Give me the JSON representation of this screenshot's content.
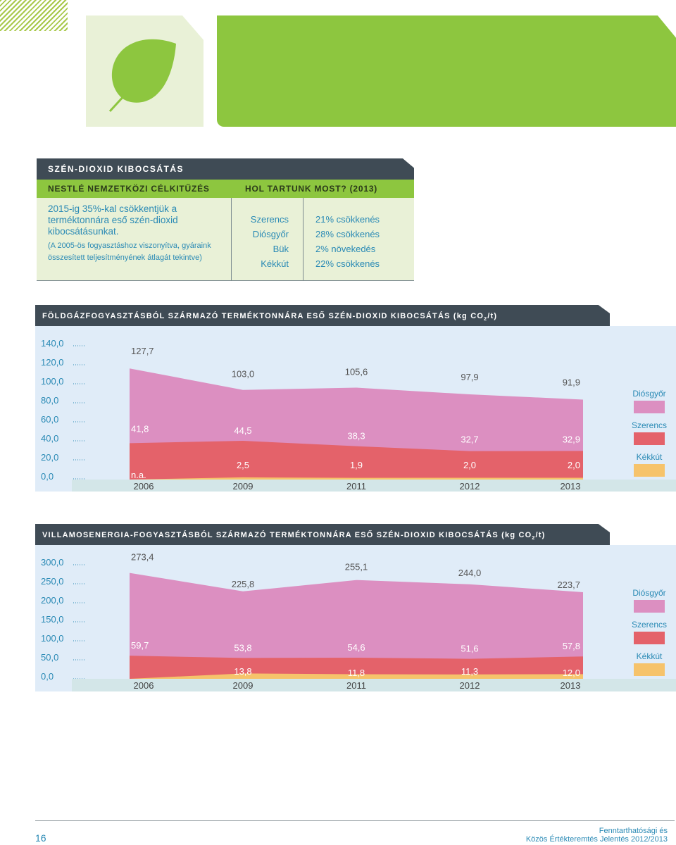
{
  "co2_table": {
    "title": "SZÉN-DIOXID KIBOCSÁTÁS",
    "col_goal": "NESTLÉ NEMZETKÖZI CÉLKITŰZÉS",
    "col_status": "HOL TARTUNK MOST? (2013)",
    "goal_main": "2015-ig 35%-kal csökkentjük a terméktonnára eső szén-dioxid kibocsátásunkat.",
    "goal_note": "(A 2005-ös fogyasztáshoz viszonyítva, gyáraink összesített teljesítményének átlagát tekintve)",
    "rows": [
      {
        "plant": "Szerencs",
        "change": "21% csökkenés"
      },
      {
        "plant": "Diósgyőr",
        "change": "28% csökkenés"
      },
      {
        "plant": "Bük",
        "change": "2% növekedés"
      },
      {
        "plant": "Kékkút",
        "change": "22% csökkenés"
      }
    ]
  },
  "chart_data": [
    {
      "type": "area",
      "title_main": "FÖLDGÁZFOGYASZTÁSBÓL SZÁRMAZÓ TERMÉKTONNÁRA ESŐ SZÉN-DIOXID KIBOCSÁTÁS (kg CO",
      "title_sub": "2",
      "title_end": "/t)",
      "x": [
        "2006",
        "2009",
        "2011",
        "2012",
        "2013"
      ],
      "yticks": [
        "140,0",
        "120,0",
        "100,0",
        "80,0",
        "60,0",
        "40,0",
        "20,0",
        "0,0"
      ],
      "ylim": [
        0,
        140
      ],
      "series": [
        {
          "name": "Diósgyőr",
          "values": [
            127.7,
            103.0,
            105.6,
            97.9,
            91.9
          ],
          "labels": [
            "127,7",
            "103,0",
            "105,6",
            "97,9",
            "91,9"
          ],
          "color": "#dc8fc1"
        },
        {
          "name": "Szerencs",
          "values": [
            41.8,
            44.5,
            38.3,
            32.7,
            32.9
          ],
          "labels": [
            "41,8",
            "44,5",
            "38,3",
            "32,7",
            "32,9"
          ],
          "color": "#e4626a"
        },
        {
          "name": "Kékkút",
          "values": [
            0,
            2.5,
            1.9,
            2.0,
            2.0
          ],
          "labels": [
            "n.a.",
            "2,5",
            "1,9",
            "2,0",
            "2,0"
          ],
          "color": "#f6c36b"
        }
      ],
      "legend": [
        "Diósgyőr",
        "Szerencs",
        "Kékkút"
      ]
    },
    {
      "type": "area",
      "title_main": "VILLAMOSENERGIA-FOGYASZTÁSBÓL SZÁRMAZÓ TERMÉKTONNÁRA ESŐ SZÉN-DIOXID KIBOCSÁTÁS (kg CO",
      "title_sub": "2",
      "title_end": "/t)",
      "x": [
        "2006",
        "2009",
        "2011",
        "2012",
        "2013"
      ],
      "yticks": [
        "300,0",
        "250,0",
        "200,0",
        "150,0",
        "100,0",
        "50,0",
        "0,0"
      ],
      "ylim": [
        0,
        300
      ],
      "series": [
        {
          "name": "Diósgyőr",
          "values": [
            273.4,
            225.8,
            255.1,
            244.0,
            223.7
          ],
          "labels": [
            "273,4",
            "225,8",
            "255,1",
            "244,0",
            "223,7"
          ],
          "color": "#dc8fc1"
        },
        {
          "name": "Szerencs",
          "values": [
            59.7,
            53.8,
            54.6,
            51.6,
            57.8
          ],
          "labels": [
            "59,7",
            "53,8",
            "54,6",
            "51,6",
            "57,8"
          ],
          "color": "#e4626a"
        },
        {
          "name": "Kékkút",
          "values": [
            0,
            13.8,
            11.8,
            11.3,
            12.0
          ],
          "labels": [
            "",
            "13,8",
            "11,8",
            "11,3",
            "12,0"
          ],
          "color": "#f6c36b"
        }
      ],
      "legend": [
        "Diósgyőr",
        "Szerencs",
        "Kékkút"
      ]
    }
  ],
  "footer": {
    "page_number": "16",
    "line1": "Fenntarthatósági és",
    "line2": "Közös Értékteremtés Jelentés 2012/2013"
  }
}
